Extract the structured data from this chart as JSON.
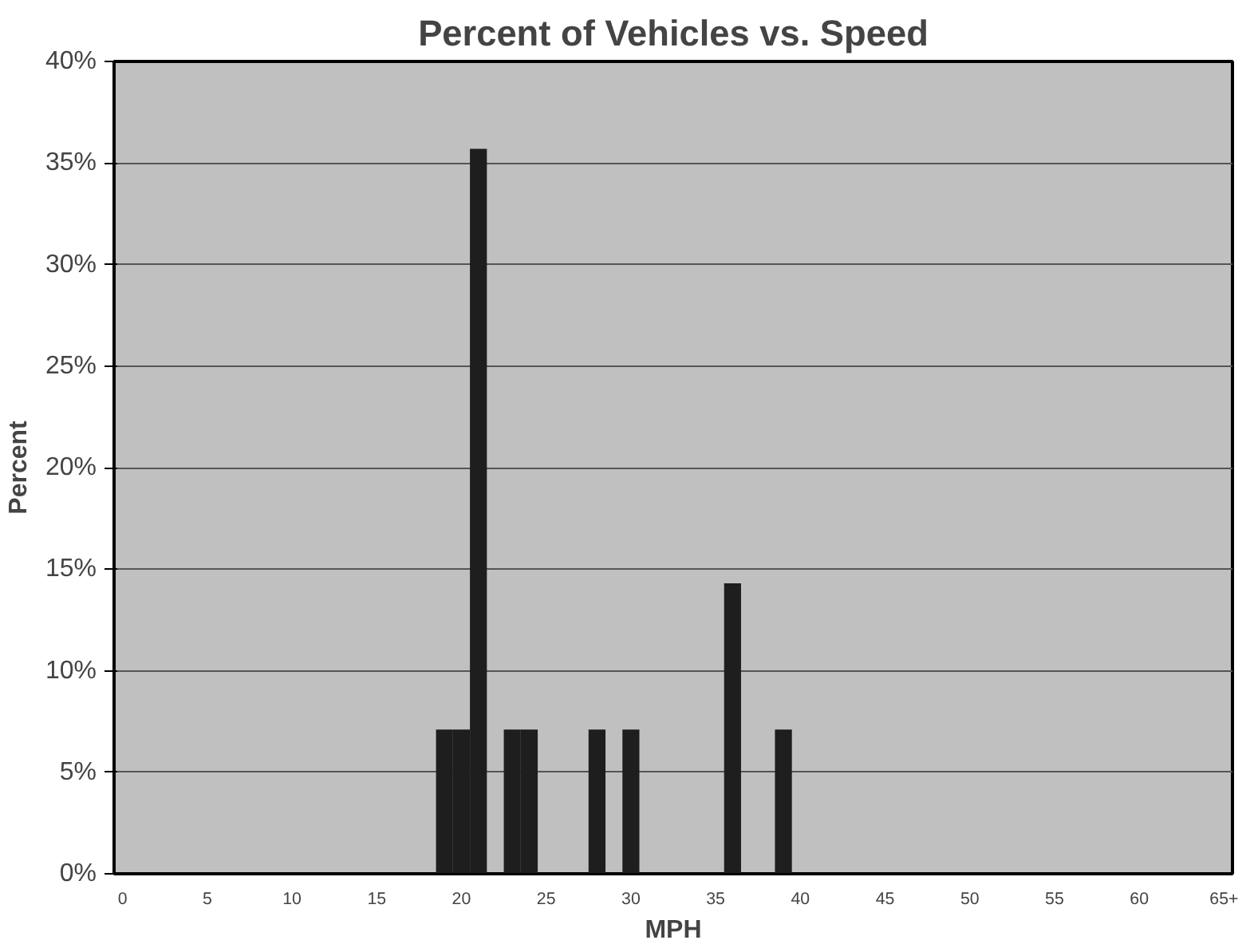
{
  "chart_data": {
    "type": "bar",
    "title": "Percent of Vehicles vs. Speed",
    "xlabel": "MPH",
    "ylabel": "Percent",
    "categories": [
      "0",
      null,
      null,
      null,
      null,
      "5",
      null,
      null,
      null,
      null,
      "10",
      null,
      null,
      null,
      null,
      "15",
      null,
      null,
      null,
      null,
      "20",
      null,
      null,
      null,
      null,
      "25",
      null,
      null,
      null,
      null,
      "30",
      null,
      null,
      null,
      null,
      "35",
      null,
      null,
      null,
      null,
      "40",
      null,
      null,
      null,
      null,
      "45",
      null,
      null,
      null,
      null,
      "50",
      null,
      null,
      null,
      null,
      "55",
      null,
      null,
      null,
      null,
      "60",
      null,
      null,
      null,
      null,
      "65+"
    ],
    "values": [
      0,
      0,
      0,
      0,
      0,
      0,
      0,
      0,
      0,
      0,
      0,
      0,
      0,
      0,
      0,
      0,
      0,
      0,
      0,
      7.1,
      7.1,
      35.7,
      0,
      7.1,
      7.1,
      0,
      0,
      0,
      7.1,
      0,
      7.1,
      0,
      0,
      0,
      0,
      0,
      14.3,
      0,
      0,
      7.1,
      0,
      0,
      0,
      0,
      0,
      0,
      0,
      0,
      0,
      0,
      0,
      0,
      0,
      0,
      0,
      0,
      0,
      0,
      0,
      0,
      0,
      0,
      0,
      0,
      0,
      0
    ],
    "color": "#1e1e1e",
    "ylim": [
      0,
      40
    ],
    "yticks": [
      {
        "value": 0,
        "label": "0%"
      },
      {
        "value": 5,
        "label": "5%"
      },
      {
        "value": 10,
        "label": "10%"
      },
      {
        "value": 15,
        "label": "15%"
      },
      {
        "value": 20,
        "label": "20%"
      },
      {
        "value": 25,
        "label": "25%"
      },
      {
        "value": 30,
        "label": "30%"
      },
      {
        "value": 35,
        "label": "35%"
      },
      {
        "value": 40,
        "label": "40%"
      }
    ],
    "grid": "y"
  }
}
